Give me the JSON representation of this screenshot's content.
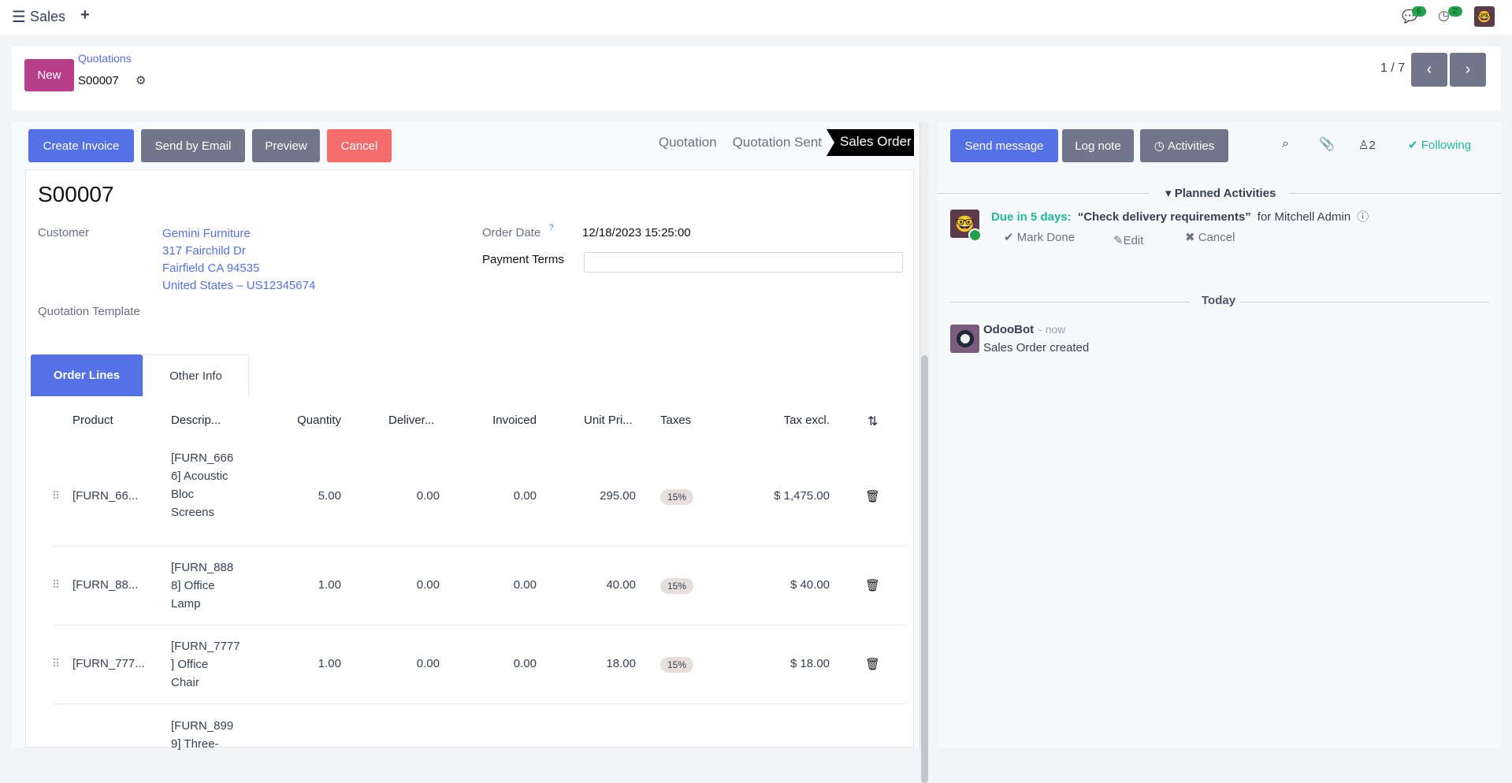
{
  "navbar": {
    "app": "Sales",
    "messages_count": "6",
    "activities_count": "2"
  },
  "control": {
    "new_label": "New",
    "breadcrumb": "Quotations",
    "record": "S00007",
    "pager": "1 / 7"
  },
  "actions": {
    "create_invoice": "Create Invoice",
    "send_email": "Send by Email",
    "preview": "Preview",
    "cancel": "Cancel"
  },
  "status": {
    "steps": [
      "Quotation",
      "Quotation Sent",
      "Sales Order"
    ],
    "current": "Sales Order"
  },
  "form": {
    "title": "S00007",
    "customer_label": "Customer",
    "customer": [
      "Gemini Furniture",
      "317 Fairchild Dr",
      "Fairfield CA 94535",
      "United States – US12345674"
    ],
    "template_label": "Quotation Template",
    "order_date_label": "Order Date",
    "order_date_help": "?",
    "order_date": "12/18/2023 15:25:00",
    "payment_terms_label": "Payment Terms",
    "payment_terms": ""
  },
  "tabs": [
    "Order Lines",
    "Other Info"
  ],
  "table": {
    "headers": [
      "Product",
      "Descrip...",
      "Quantity",
      "Deliver...",
      "Invoiced",
      "Unit Pri...",
      "Taxes",
      "Tax excl."
    ],
    "rows": [
      {
        "product": "[FURN_66...",
        "desc": [
          "[FURN_666",
          "6] Acoustic",
          "Bloc",
          "Screens"
        ],
        "qty": "5.00",
        "delivered": "0.00",
        "invoiced": "0.00",
        "price": "295.00",
        "tax": "15%",
        "subtotal": "$ 1,475.00"
      },
      {
        "product": "[FURN_88...",
        "desc": [
          "[FURN_888",
          "8] Office",
          "Lamp"
        ],
        "qty": "1.00",
        "delivered": "0.00",
        "invoiced": "0.00",
        "price": "40.00",
        "tax": "15%",
        "subtotal": "$ 40.00"
      },
      {
        "product": "[FURN_777...",
        "desc": [
          "[FURN_7777",
          "] Office",
          "Chair"
        ],
        "qty": "1.00",
        "delivered": "0.00",
        "invoiced": "0.00",
        "price": "18.00",
        "tax": "15%",
        "subtotal": "$ 18.00"
      },
      {
        "desc": [
          "[FURN_899",
          "9] Three-"
        ]
      }
    ]
  },
  "chatter": {
    "send_message": "Send message",
    "log_note": "Log note",
    "activities": "Activities",
    "followers": "2",
    "following": "Following",
    "planned_label": "Planned Activities",
    "due": "Due in 5 days:",
    "activity_title": "“Check delivery requirements”",
    "activity_for": "for Mitchell Admin",
    "mark_done": "Mark Done",
    "edit": "Edit",
    "cancel": "Cancel",
    "today": "Today",
    "author": "OdooBot",
    "time": "- now",
    "message": "Sales Order created"
  },
  "colors": {
    "primary": "#5472e6",
    "new_button": "#b83e8c",
    "danger": "#f46c6c",
    "success": "#21b799",
    "secondary": "#71768a"
  }
}
